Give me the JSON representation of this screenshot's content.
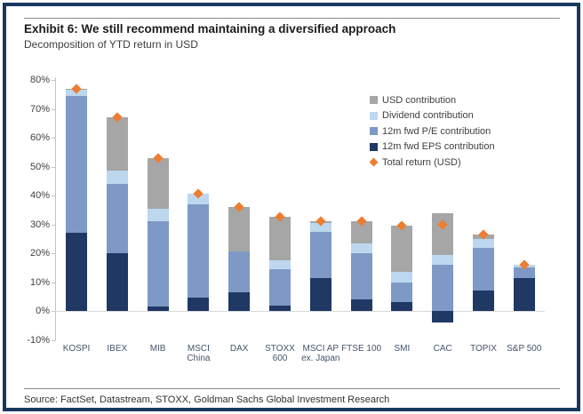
{
  "header": {
    "title": "Exhibit 6: We still recommend maintaining a diversified approach",
    "subtitle": "Decomposition of YTD return in USD"
  },
  "footer": {
    "source": "Source: FactSet, Datastream, STOXX, Goldman Sachs Global Investment Research"
  },
  "colors": {
    "frame_border": "#17375e",
    "eps": "#1f3864",
    "pe": "#7e99c5",
    "dividend": "#bdd7ee",
    "usd": "#a6a6a6",
    "total_marker": "#ed7d31",
    "axis": "#c4c4c4",
    "zero_line": "#d9d9d9"
  },
  "chart_data": {
    "type": "bar",
    "stacked": true,
    "title": "Decomposition of YTD return in USD",
    "categories": [
      "KOSPI",
      "IBEX",
      "MIB",
      "MSCI China",
      "DAX",
      "STOXX 600",
      "MSCI AP ex. Japan",
      "FTSE 100",
      "SMI",
      "CAC",
      "TOPIX",
      "S&P 500"
    ],
    "category_lines": [
      [
        "KOSPI"
      ],
      [
        "IBEX"
      ],
      [
        "MIB"
      ],
      [
        "MSCI",
        "China"
      ],
      [
        "DAX"
      ],
      [
        "STOXX",
        "600"
      ],
      [
        "MSCI AP",
        "ex. Japan"
      ],
      [
        "FTSE 100"
      ],
      [
        "SMI"
      ],
      [
        "CAC"
      ],
      [
        "TOPIX"
      ],
      [
        "S&P 500"
      ]
    ],
    "series": [
      {
        "name": "12m fwd EPS contribution",
        "color": "#1f3864",
        "values": [
          27,
          20,
          1.5,
          4.5,
          6.5,
          2,
          11.5,
          4,
          3,
          -4,
          7,
          11.5
        ]
      },
      {
        "name": "12m fwd P/E contribution",
        "color": "#7e99c5",
        "values": [
          47.5,
          24,
          29.5,
          32.5,
          14,
          12.5,
          16,
          16,
          7,
          16,
          15,
          3.5
        ]
      },
      {
        "name": "Dividend contribution",
        "color": "#bdd7ee",
        "values": [
          2,
          4.5,
          4.5,
          3.5,
          0,
          3,
          3,
          3.5,
          3.5,
          3.5,
          3,
          1
        ]
      },
      {
        "name": "USD contribution",
        "color": "#a6a6a6",
        "values": [
          0.5,
          18.5,
          17.5,
          0,
          15.5,
          15,
          0.5,
          7.5,
          16,
          14.5,
          1.5,
          0
        ]
      }
    ],
    "markers": {
      "name": "Total return (USD)",
      "color": "#ed7d31",
      "values": [
        77,
        67,
        53,
        40.5,
        36,
        32.5,
        31,
        31,
        29.5,
        30,
        26.5,
        16
      ]
    },
    "ylim": [
      -10,
      80
    ],
    "ytick_values": [
      80,
      70,
      60,
      50,
      40,
      30,
      20,
      10,
      0,
      -10
    ],
    "ytick_labels": [
      "80%",
      "70%",
      "60%",
      "50%",
      "40%",
      "30%",
      "20%",
      "10%",
      "0%",
      "-10%"
    ],
    "grid": false,
    "legend_position": "top-right",
    "legend": [
      {
        "label": "USD contribution",
        "color": "#a6a6a6",
        "shape": "square"
      },
      {
        "label": "Dividend contribution",
        "color": "#bdd7ee",
        "shape": "square"
      },
      {
        "label": "12m fwd P/E contribution",
        "color": "#7e99c5",
        "shape": "square"
      },
      {
        "label": "12m fwd EPS contribution",
        "color": "#1f3864",
        "shape": "square"
      },
      {
        "label": "Total return (USD)",
        "color": "#ed7d31",
        "shape": "diamond"
      }
    ]
  }
}
